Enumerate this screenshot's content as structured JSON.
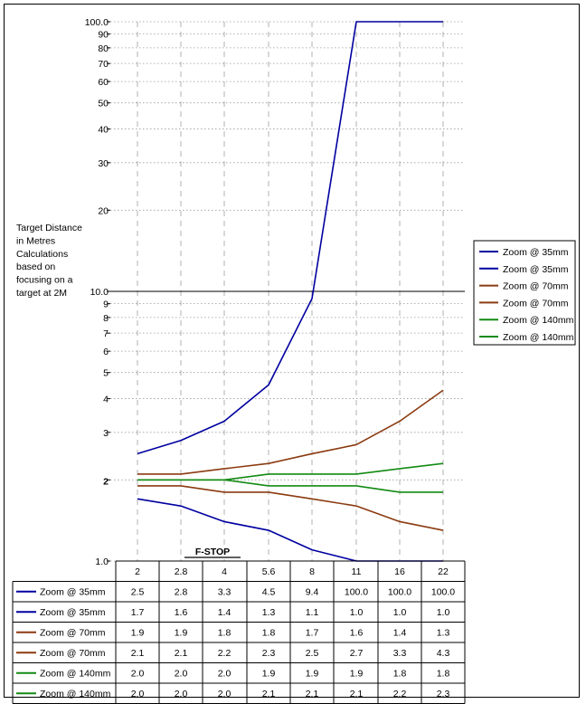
{
  "chart_data": {
    "type": "line",
    "x_label": "F-STOP",
    "y_label_lines": [
      "Target Distance",
      "in Metres",
      "Calculations",
      "based on",
      "focusing on a",
      "target at 2M"
    ],
    "y_scale": "log",
    "ylim": [
      1.0,
      100.0
    ],
    "reference_line_y": 10.0,
    "y_ticks": [
      {
        "v": 1.0,
        "label": "1.0",
        "bold": false
      },
      {
        "v": 2,
        "label": "2",
        "bold": true
      },
      {
        "v": 3,
        "label": "3",
        "bold": false
      },
      {
        "v": 4,
        "label": "4",
        "bold": false
      },
      {
        "v": 5,
        "label": "5",
        "bold": false
      },
      {
        "v": 6,
        "label": "6",
        "bold": false
      },
      {
        "v": 7,
        "label": "7",
        "bold": false
      },
      {
        "v": 8,
        "label": "8",
        "bold": false
      },
      {
        "v": 9,
        "label": "9",
        "bold": false
      },
      {
        "v": 10.0,
        "label": "10.0",
        "bold": false
      },
      {
        "v": 20,
        "label": "20",
        "bold": false
      },
      {
        "v": 30,
        "label": "30",
        "bold": false
      },
      {
        "v": 40,
        "label": "40",
        "bold": false
      },
      {
        "v": 50,
        "label": "50",
        "bold": false
      },
      {
        "v": 60,
        "label": "60",
        "bold": false
      },
      {
        "v": 70,
        "label": "70",
        "bold": false
      },
      {
        "v": 80,
        "label": "80",
        "bold": false
      },
      {
        "v": 90,
        "label": "90",
        "bold": false
      },
      {
        "v": 100.0,
        "label": "100.0",
        "bold": false
      }
    ],
    "categories": [
      "2",
      "2.8",
      "4",
      "5.6",
      "8",
      "11",
      "16",
      "22"
    ],
    "series": [
      {
        "name": "Zoom @ 35mm",
        "color": "#0000a0",
        "values": [
          2.5,
          2.8,
          3.3,
          4.5,
          9.4,
          100.0,
          100.0,
          100.0
        ],
        "labels": [
          "2.5",
          "2.8",
          "3.3",
          "4.5",
          "9.4",
          "100.0",
          "100.0",
          "100.0"
        ]
      },
      {
        "name": "Zoom @ 35mm",
        "color": "#0000a0",
        "values": [
          1.7,
          1.6,
          1.4,
          1.3,
          1.1,
          1.0,
          1.0,
          1.0
        ],
        "labels": [
          "1.7",
          "1.6",
          "1.4",
          "1.3",
          "1.1",
          "1.0",
          "1.0",
          "1.0"
        ]
      },
      {
        "name": "Zoom @ 70mm",
        "color": "#8b3a10",
        "values": [
          1.9,
          1.9,
          1.8,
          1.8,
          1.7,
          1.6,
          1.4,
          1.3
        ],
        "labels": [
          "1.9",
          "1.9",
          "1.8",
          "1.8",
          "1.7",
          "1.6",
          "1.4",
          "1.3"
        ]
      },
      {
        "name": "Zoom @ 70mm",
        "color": "#8b3a10",
        "values": [
          2.1,
          2.1,
          2.2,
          2.3,
          2.5,
          2.7,
          3.3,
          4.3
        ],
        "labels": [
          "2.1",
          "2.1",
          "2.2",
          "2.3",
          "2.5",
          "2.7",
          "3.3",
          "4.3"
        ]
      },
      {
        "name": "Zoom @ 140mm",
        "color": "#138a13",
        "values": [
          2.0,
          2.0,
          2.0,
          1.9,
          1.9,
          1.9,
          1.8,
          1.8
        ],
        "labels": [
          "2.0",
          "2.0",
          "2.0",
          "1.9",
          "1.9",
          "1.9",
          "1.8",
          "1.8"
        ]
      },
      {
        "name": "Zoom @ 140mm",
        "color": "#138a13",
        "values": [
          2.0,
          2.0,
          2.0,
          2.1,
          2.1,
          2.1,
          2.2,
          2.3
        ],
        "labels": [
          "2.0",
          "2.0",
          "2.0",
          "2.1",
          "2.1",
          "2.1",
          "2.2",
          "2.3"
        ]
      }
    ],
    "legend_position": "right",
    "grid": "vertical dashed, horizontal dotted"
  }
}
